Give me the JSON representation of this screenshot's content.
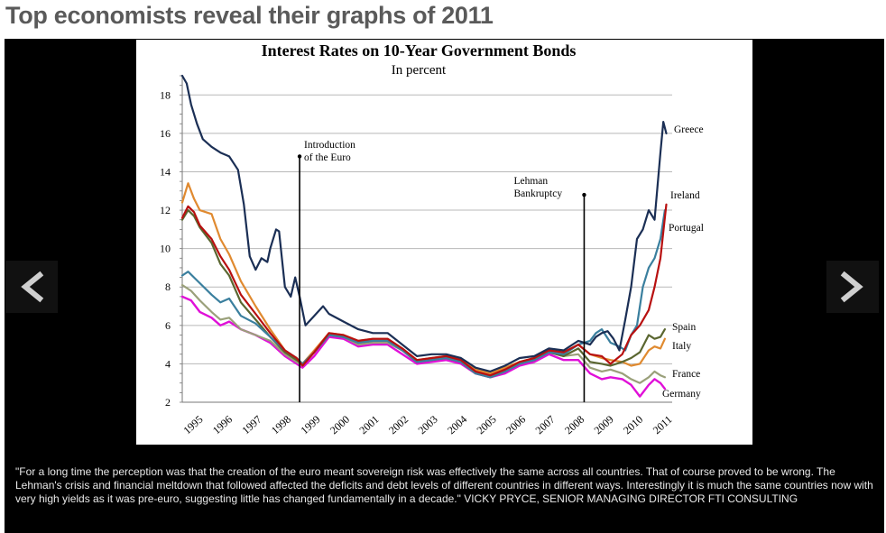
{
  "page": {
    "headline": "Top economists reveal their graphs of 2011"
  },
  "slideshow": {
    "prev_icon": "chevron-left-icon",
    "next_icon": "chevron-right-icon",
    "caption": "\"For a long time the perception was that the creation of the euro meant sovereign risk was effectively the same across all countries. That of course proved to be wrong. The Lehman's crisis and financial meltdown that followed affected the deficits and debt levels of different countries in different ways. Interestingly it is much the same countries now with very high yields as it was pre-euro, suggesting little has changed fundamentally in a decade.\" VICKY PRYCE, SENIOR MANAGING DIRECTOR FTI CONSULTING"
  },
  "chart_data": {
    "type": "line",
    "title": "Interest Rates on 10-Year Government Bonds",
    "subtitle": "In percent",
    "xlabel": "",
    "ylabel": "",
    "xlim": [
      1995,
      2011.7
    ],
    "ylim": [
      2,
      19
    ],
    "yticks": [
      2,
      4,
      6,
      8,
      10,
      12,
      14,
      16,
      18
    ],
    "xticks": [
      "1995",
      "1996",
      "1997",
      "1998",
      "1999",
      "2000",
      "2001",
      "2002",
      "2003",
      "2004",
      "2005",
      "2006",
      "2007",
      "2008",
      "2009",
      "2010",
      "2011"
    ],
    "grid": true,
    "annotations": [
      {
        "x": 1999.0,
        "y_from": 2.0,
        "y_to": 14.8,
        "text_lines": [
          "Introduction",
          "of the Euro"
        ]
      },
      {
        "x": 2008.7,
        "y_from": 2.0,
        "y_to": 12.8,
        "text_lines": [
          "Lehman",
          "Bankruptcy"
        ]
      }
    ],
    "series": [
      {
        "name": "Germany",
        "color": "#e010d8",
        "x": [
          1995.0,
          1995.3,
          1995.6,
          1996.0,
          1996.3,
          1996.6,
          1997.0,
          1997.5,
          1998.0,
          1998.5,
          1998.9,
          1999.1,
          1999.5,
          2000.0,
          2000.5,
          2001.0,
          2001.5,
          2002.0,
          2002.5,
          2003.0,
          2003.5,
          2004.0,
          2004.5,
          2005.0,
          2005.5,
          2006.0,
          2006.5,
          2007.0,
          2007.5,
          2008.0,
          2008.5,
          2008.9,
          2009.3,
          2009.6,
          2010.0,
          2010.3,
          2010.6,
          2010.9,
          2011.1,
          2011.3,
          2011.45
        ],
        "y": [
          7.5,
          7.3,
          6.7,
          6.4,
          6.0,
          6.2,
          5.8,
          5.5,
          5.1,
          4.4,
          4.0,
          3.8,
          4.4,
          5.4,
          5.3,
          4.9,
          5.0,
          5.0,
          4.5,
          4.0,
          4.1,
          4.2,
          4.0,
          3.5,
          3.3,
          3.5,
          3.9,
          4.1,
          4.5,
          4.2,
          4.2,
          3.5,
          3.2,
          3.3,
          3.2,
          2.9,
          2.3,
          2.9,
          3.2,
          3.0,
          2.7
        ]
      },
      {
        "name": "France",
        "color": "#9aa07a",
        "x": [
          1995.0,
          1995.3,
          1995.6,
          1996.0,
          1996.3,
          1996.6,
          1997.0,
          1997.5,
          1998.0,
          1998.5,
          1998.9,
          1999.1,
          1999.5,
          2000.0,
          2000.5,
          2001.0,
          2001.5,
          2002.0,
          2002.5,
          2003.0,
          2003.5,
          2004.0,
          2004.5,
          2005.0,
          2005.5,
          2006.0,
          2006.5,
          2007.0,
          2007.5,
          2008.0,
          2008.5,
          2008.9,
          2009.3,
          2009.6,
          2010.0,
          2010.3,
          2010.6,
          2010.9,
          2011.1,
          2011.3,
          2011.45
        ],
        "y": [
          8.1,
          7.8,
          7.3,
          6.7,
          6.3,
          6.4,
          5.8,
          5.5,
          5.2,
          4.5,
          4.1,
          3.9,
          4.6,
          5.5,
          5.4,
          5.0,
          5.1,
          5.1,
          4.7,
          4.1,
          4.2,
          4.3,
          4.1,
          3.6,
          3.4,
          3.6,
          4.0,
          4.2,
          4.6,
          4.4,
          4.5,
          3.8,
          3.6,
          3.7,
          3.5,
          3.2,
          3.0,
          3.3,
          3.6,
          3.4,
          3.3
        ]
      },
      {
        "name": "Italy",
        "color": "#e08a30",
        "x": [
          1995.0,
          1995.2,
          1995.4,
          1995.6,
          1996.0,
          1996.3,
          1996.6,
          1997.0,
          1997.5,
          1998.0,
          1998.5,
          1998.9,
          1999.1,
          1999.5,
          2000.0,
          2000.5,
          2001.0,
          2001.5,
          2002.0,
          2002.5,
          2003.0,
          2003.5,
          2004.0,
          2004.5,
          2005.0,
          2005.5,
          2006.0,
          2006.5,
          2007.0,
          2007.5,
          2008.0,
          2008.5,
          2008.9,
          2009.3,
          2009.6,
          2010.0,
          2010.3,
          2010.6,
          2010.9,
          2011.1,
          2011.3,
          2011.45
        ],
        "y": [
          12.4,
          13.4,
          12.6,
          12.0,
          11.8,
          10.5,
          9.7,
          8.3,
          7.0,
          5.8,
          4.7,
          4.3,
          4.0,
          4.7,
          5.6,
          5.5,
          5.2,
          5.3,
          5.3,
          4.8,
          4.2,
          4.3,
          4.4,
          4.2,
          3.7,
          3.5,
          3.8,
          4.1,
          4.3,
          4.7,
          4.6,
          5.0,
          4.5,
          4.3,
          4.2,
          4.1,
          3.9,
          4.0,
          4.7,
          4.9,
          4.8,
          5.3
        ]
      },
      {
        "name": "Spain",
        "color": "#5a6630",
        "x": [
          1995.0,
          1995.2,
          1995.4,
          1995.6,
          1996.0,
          1996.3,
          1996.6,
          1997.0,
          1997.5,
          1998.0,
          1998.5,
          1998.9,
          1999.1,
          1999.5,
          2000.0,
          2000.5,
          2001.0,
          2001.5,
          2002.0,
          2002.5,
          2003.0,
          2003.5,
          2004.0,
          2004.5,
          2005.0,
          2005.5,
          2006.0,
          2006.5,
          2007.0,
          2007.5,
          2008.0,
          2008.5,
          2008.9,
          2009.3,
          2009.6,
          2010.0,
          2010.3,
          2010.6,
          2010.9,
          2011.1,
          2011.3,
          2011.45
        ],
        "y": [
          11.5,
          12.0,
          11.7,
          11.1,
          10.3,
          9.2,
          8.6,
          7.2,
          6.3,
          5.4,
          4.6,
          4.2,
          4.0,
          4.6,
          5.5,
          5.4,
          5.1,
          5.2,
          5.2,
          4.7,
          4.1,
          4.2,
          4.3,
          4.1,
          3.5,
          3.3,
          3.6,
          4.0,
          4.2,
          4.6,
          4.4,
          4.8,
          4.1,
          4.0,
          3.9,
          4.1,
          4.3,
          4.6,
          5.5,
          5.3,
          5.4,
          5.8
        ]
      },
      {
        "name": "Ireland",
        "color": "#3a7f9e",
        "x": [
          1995.0,
          1995.2,
          1995.4,
          1995.6,
          1996.0,
          1996.3,
          1996.6,
          1997.0,
          1997.5,
          1998.0,
          1998.5,
          1998.9,
          1999.1,
          1999.5,
          2000.0,
          2000.5,
          2001.0,
          2001.5,
          2002.0,
          2002.5,
          2003.0,
          2003.5,
          2004.0,
          2004.5,
          2005.0,
          2005.5,
          2006.0,
          2006.5,
          2007.0,
          2007.5,
          2008.0,
          2008.5,
          2008.9,
          2009.1,
          2009.3,
          2009.6,
          2009.9,
          2010.1,
          2010.3,
          2010.5,
          2010.7,
          2010.9,
          2011.1,
          2011.3,
          2011.45
        ],
        "y": [
          8.6,
          8.8,
          8.5,
          8.2,
          7.6,
          7.2,
          7.4,
          6.5,
          6.1,
          5.4,
          4.7,
          4.3,
          4.0,
          4.6,
          5.5,
          5.4,
          5.1,
          5.2,
          5.2,
          4.7,
          4.1,
          4.2,
          4.3,
          4.1,
          3.5,
          3.3,
          3.6,
          4.0,
          4.2,
          4.6,
          4.5,
          5.0,
          5.2,
          5.6,
          5.8,
          5.1,
          4.9,
          4.7,
          5.5,
          6.0,
          8.0,
          9.0,
          9.5,
          10.5,
          12.0
        ]
      },
      {
        "name": "Portugal",
        "color": "#b81010",
        "x": [
          1995.0,
          1995.2,
          1995.4,
          1995.6,
          1996.0,
          1996.3,
          1996.6,
          1997.0,
          1997.5,
          1998.0,
          1998.5,
          1998.9,
          1999.1,
          1999.5,
          2000.0,
          2000.5,
          2001.0,
          2001.5,
          2002.0,
          2002.5,
          2003.0,
          2003.5,
          2004.0,
          2004.5,
          2005.0,
          2005.5,
          2006.0,
          2006.5,
          2007.0,
          2007.5,
          2008.0,
          2008.5,
          2008.9,
          2009.3,
          2009.6,
          2010.0,
          2010.3,
          2010.6,
          2010.9,
          2011.1,
          2011.3,
          2011.5
        ],
        "y": [
          11.6,
          12.2,
          11.9,
          11.2,
          10.5,
          9.6,
          8.9,
          7.6,
          6.6,
          5.6,
          4.7,
          4.3,
          3.9,
          4.6,
          5.6,
          5.5,
          5.2,
          5.3,
          5.3,
          4.8,
          4.2,
          4.3,
          4.4,
          4.2,
          3.6,
          3.4,
          3.7,
          4.1,
          4.3,
          4.7,
          4.6,
          5.0,
          4.5,
          4.4,
          4.0,
          4.5,
          5.5,
          6.0,
          6.8,
          8.0,
          9.5,
          12.3
        ]
      },
      {
        "name": "Greece",
        "color": "#1b2f55",
        "x": [
          1995.0,
          1995.15,
          1995.3,
          1995.5,
          1995.7,
          1996.0,
          1996.3,
          1996.6,
          1996.9,
          1997.1,
          1997.3,
          1997.5,
          1997.7,
          1997.9,
          1998.0,
          1998.2,
          1998.3,
          1998.5,
          1998.7,
          1998.85,
          1999.0,
          1999.2,
          1999.5,
          1999.8,
          2000.0,
          2000.5,
          2001.0,
          2001.5,
          2002.0,
          2002.5,
          2003.0,
          2003.5,
          2004.0,
          2004.5,
          2005.0,
          2005.5,
          2006.0,
          2006.5,
          2007.0,
          2007.5,
          2008.0,
          2008.5,
          2008.9,
          2009.1,
          2009.3,
          2009.5,
          2009.7,
          2009.9,
          2010.1,
          2010.3,
          2010.5,
          2010.7,
          2010.9,
          2011.1,
          2011.3,
          2011.4,
          2011.5
        ],
        "y": [
          19.0,
          18.6,
          17.5,
          16.5,
          15.7,
          15.3,
          15.0,
          14.8,
          14.1,
          12.3,
          9.6,
          8.9,
          9.5,
          9.3,
          10.0,
          11.0,
          10.9,
          8.0,
          7.5,
          8.5,
          7.5,
          6.0,
          6.5,
          7.0,
          6.6,
          6.2,
          5.8,
          5.6,
          5.6,
          5.0,
          4.4,
          4.5,
          4.5,
          4.3,
          3.8,
          3.6,
          3.9,
          4.3,
          4.4,
          4.8,
          4.7,
          5.2,
          5.0,
          5.4,
          5.6,
          5.7,
          5.3,
          4.7,
          6.3,
          8.0,
          10.5,
          11.0,
          12.0,
          11.5,
          15.0,
          16.6,
          16.0
        ]
      }
    ]
  }
}
